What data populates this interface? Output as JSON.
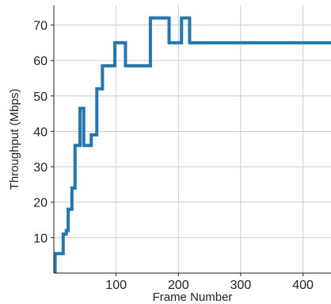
{
  "chart_data": {
    "type": "line",
    "title": "",
    "xlabel": "Frame Number",
    "ylabel": "Throughput (Mbps)",
    "xlim": [
      0,
      445
    ],
    "ylim": [
      0,
      75.5
    ],
    "x_ticks": [
      100,
      200,
      300,
      400
    ],
    "y_ticks": [
      10,
      20,
      30,
      40,
      50,
      60,
      70
    ],
    "x_tick_labels": [
      "100",
      "200",
      "300",
      "400"
    ],
    "y_tick_labels": [
      "10",
      "20",
      "30",
      "40",
      "50",
      "60",
      "70"
    ],
    "grid": true,
    "legend": "none",
    "series": [
      {
        "color": "#1f77b4",
        "x": [
          0,
          2,
          2,
          7,
          7,
          10,
          10,
          15,
          15,
          17,
          17,
          20,
          20,
          23,
          23,
          26,
          26,
          29,
          29,
          30,
          30,
          34,
          34,
          38,
          38,
          42,
          42,
          45,
          45,
          48,
          48,
          55,
          55,
          60,
          60,
          64,
          64,
          69,
          69,
          73,
          73,
          78,
          78,
          85,
          85,
          95,
          95,
          98,
          98,
          103,
          103,
          105,
          105,
          115,
          115,
          130,
          130,
          155,
          155,
          160,
          160,
          170,
          170,
          185,
          185,
          190,
          190,
          200,
          200,
          205,
          205,
          210,
          210,
          218,
          218,
          250,
          250,
          300,
          300,
          350,
          350,
          400,
          400,
          445
        ],
        "values": [
          0,
          0,
          5.5,
          5.5,
          5.5,
          5.5,
          5.5,
          5.5,
          11,
          11,
          11,
          11,
          12,
          12,
          18,
          18,
          18,
          18,
          24,
          24,
          24,
          24,
          36,
          36,
          36,
          36,
          46.5,
          46.5,
          46.5,
          46.5,
          36,
          36,
          36,
          36,
          39,
          39,
          39,
          39,
          52,
          52,
          52,
          52,
          58.5,
          58.5,
          58.5,
          58.5,
          58.5,
          58.5,
          65,
          65,
          65,
          65,
          65,
          65,
          58.5,
          58.5,
          58.5,
          58.5,
          72,
          72,
          72,
          72,
          72,
          72,
          65,
          65,
          65,
          65,
          65,
          65,
          72,
          72,
          72,
          72,
          65,
          65,
          65,
          65,
          65,
          65,
          65,
          65,
          65,
          65
        ]
      }
    ]
  }
}
